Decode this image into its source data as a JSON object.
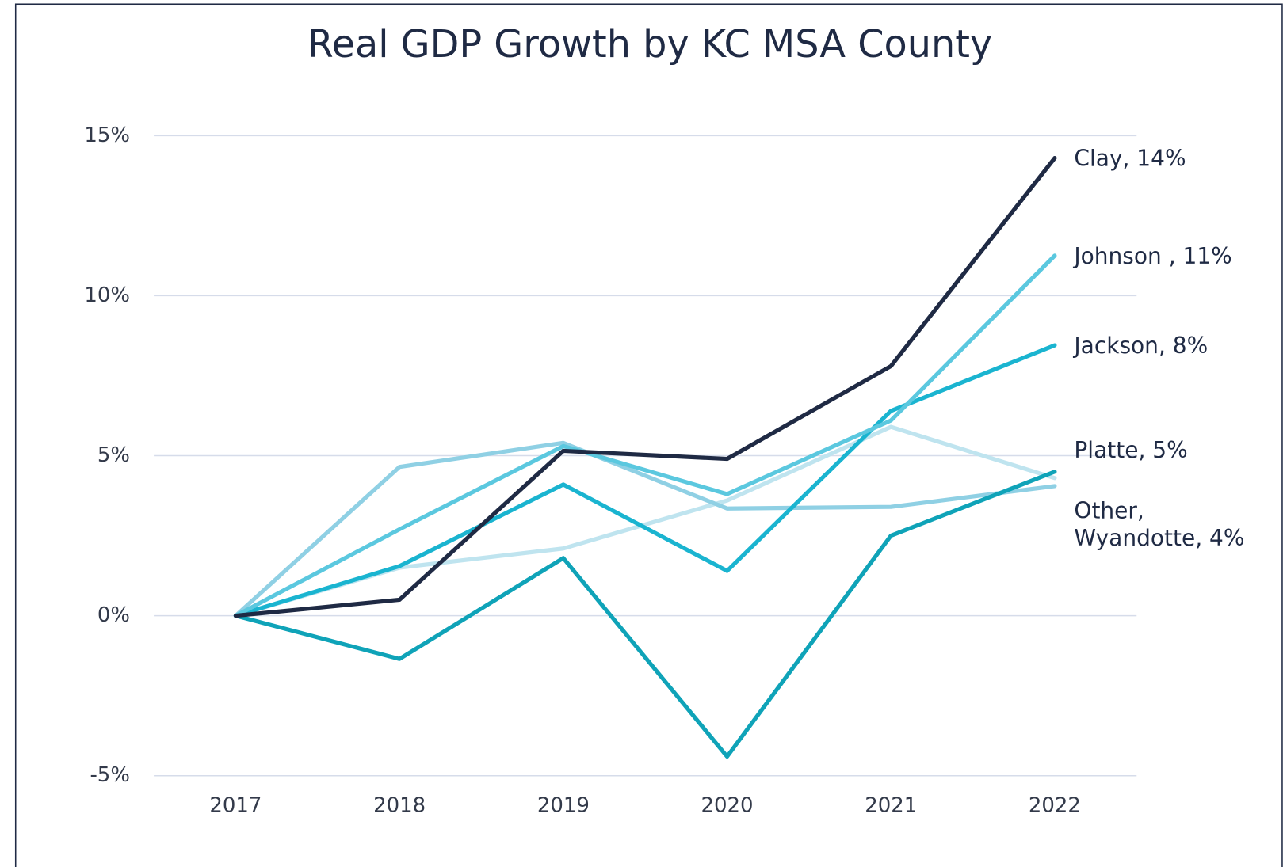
{
  "chart_data": {
    "type": "line",
    "title": "Real GDP Growth by KC MSA County",
    "categories": [
      "2017",
      "2018",
      "2019",
      "2020",
      "2021",
      "2022"
    ],
    "series": [
      {
        "color": "#bfe4ef",
        "values": [
          0,
          1.5,
          2.1,
          3.6,
          5.9,
          4.3
        ]
      },
      {
        "color": "#8fd0e4",
        "values": [
          0,
          4.65,
          5.4,
          3.35,
          3.4,
          4.05
        ]
      },
      {
        "color": "#0fa3b8",
        "values": [
          0,
          -1.35,
          1.8,
          -4.4,
          2.5,
          4.5
        ]
      },
      {
        "color": "#1ab4d0",
        "values": [
          0,
          1.55,
          4.1,
          1.4,
          6.4,
          8.45
        ]
      },
      {
        "color": "#5bc8df",
        "values": [
          0,
          2.7,
          5.3,
          3.8,
          6.1,
          11.25
        ]
      },
      {
        "color": "#1f2a44",
        "values": [
          0,
          0.5,
          5.15,
          4.9,
          7.8,
          14.3
        ]
      }
    ],
    "ylim": [
      -5,
      15
    ],
    "yticks": [
      {
        "value": -5,
        "label": "-5%"
      },
      {
        "value": 0,
        "label": "0%"
      },
      {
        "value": 5,
        "label": "5%"
      },
      {
        "value": 10,
        "label": "10%"
      },
      {
        "value": 15,
        "label": "15%"
      }
    ],
    "grid": true,
    "annotations": [
      "Clay, 14%",
      "Johnson , 11%",
      "Jackson, 8%",
      "Platte, 5%",
      "Other,",
      "Wyandotte, 4%"
    ]
  }
}
